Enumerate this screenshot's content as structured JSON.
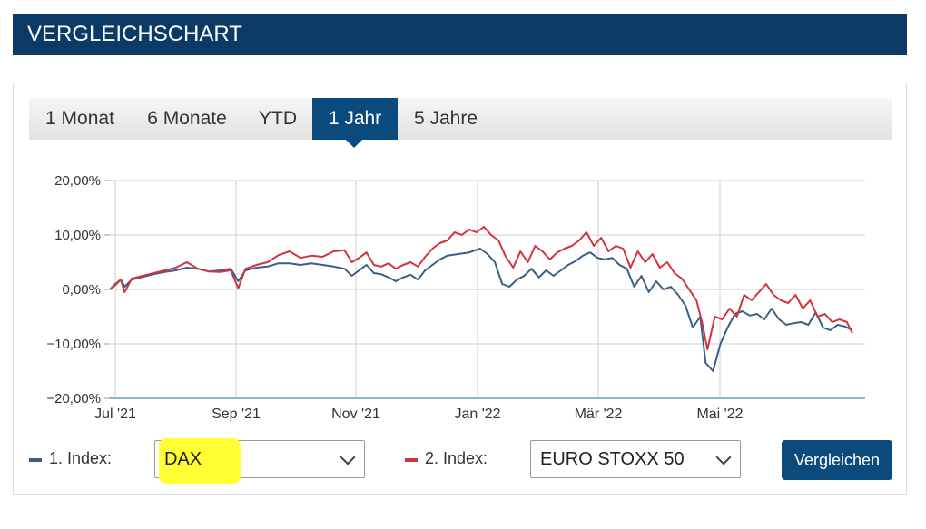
{
  "header": {
    "title": "VERGLEICHSCHART"
  },
  "tabs": [
    {
      "label": "1 Monat"
    },
    {
      "label": "6 Monate"
    },
    {
      "label": "YTD"
    },
    {
      "label": "1 Jahr"
    },
    {
      "label": "5 Jahre"
    }
  ],
  "active_tab": "1 Jahr",
  "colors": {
    "header_bg": "#0b3a66",
    "accent": "#0b4a7d",
    "series1": "#3a5f86",
    "series2": "#d0343d",
    "grid": "#cfcfcf"
  },
  "controls": {
    "index1_label": "1. Index:",
    "index1_value": "DAX",
    "index2_label": "2. Index:",
    "index2_value": "EURO STOXX 50",
    "compare_button": "Vergleichen"
  },
  "chart_data": {
    "type": "line",
    "x_tick_labels": [
      "Jul '21",
      "Sep '21",
      "Nov '21",
      "Jan '22",
      "Mär '22",
      "Mai '22"
    ],
    "y_tick_labels": [
      "20,00%",
      "10,00%",
      "0,00%",
      "−10,00%",
      "−20,00%"
    ],
    "y_ticks": [
      20,
      10,
      0,
      -10,
      -20
    ],
    "ylim": [
      -20,
      20
    ],
    "x_range_days": [
      0,
      365
    ],
    "grid": true,
    "series": [
      {
        "legend_label": "1. Index: DAX",
        "color": "#3a5f86",
        "points": [
          [
            0,
            0
          ],
          [
            3,
            1
          ],
          [
            6,
            1.8
          ],
          [
            8,
            0.5
          ],
          [
            12,
            1.8
          ],
          [
            18,
            2.3
          ],
          [
            24,
            2.8
          ],
          [
            30,
            3.2
          ],
          [
            36,
            3.5
          ],
          [
            42,
            4
          ],
          [
            48,
            3.8
          ],
          [
            54,
            3.3
          ],
          [
            60,
            3.5
          ],
          [
            66,
            3.8
          ],
          [
            70,
            1.5
          ],
          [
            74,
            3.5
          ],
          [
            80,
            4
          ],
          [
            86,
            4.2
          ],
          [
            92,
            4.8
          ],
          [
            98,
            4.8
          ],
          [
            104,
            4.5
          ],
          [
            110,
            4.8
          ],
          [
            116,
            4.5
          ],
          [
            122,
            4.2
          ],
          [
            128,
            3.8
          ],
          [
            132,
            2.5
          ],
          [
            136,
            3.5
          ],
          [
            140,
            4.5
          ],
          [
            144,
            3
          ],
          [
            148,
            2.8
          ],
          [
            152,
            2.2
          ],
          [
            156,
            1.5
          ],
          [
            160,
            2.2
          ],
          [
            164,
            2.7
          ],
          [
            168,
            1.8
          ],
          [
            172,
            3.5
          ],
          [
            176,
            4.5
          ],
          [
            180,
            5.5
          ],
          [
            184,
            6.2
          ],
          [
            190,
            6.5
          ],
          [
            196,
            6.8
          ],
          [
            202,
            7.5
          ],
          [
            206,
            6.5
          ],
          [
            210,
            5
          ],
          [
            214,
            1
          ],
          [
            218,
            0.5
          ],
          [
            222,
            1.8
          ],
          [
            226,
            2.5
          ],
          [
            230,
            3.8
          ],
          [
            234,
            2.2
          ],
          [
            238,
            3.5
          ],
          [
            242,
            2.5
          ],
          [
            246,
            3.5
          ],
          [
            250,
            4.5
          ],
          [
            254,
            5.2
          ],
          [
            258,
            6.2
          ],
          [
            262,
            6.8
          ],
          [
            266,
            5.8
          ],
          [
            270,
            5.5
          ],
          [
            274,
            5.8
          ],
          [
            278,
            4.5
          ],
          [
            282,
            3.8
          ],
          [
            286,
            0.5
          ],
          [
            290,
            2.5
          ],
          [
            294,
            -0.5
          ],
          [
            298,
            1.5
          ],
          [
            302,
            0
          ],
          [
            306,
            0.5
          ],
          [
            310,
            -1
          ],
          [
            314,
            -3
          ],
          [
            318,
            -7
          ],
          [
            322,
            -5
          ],
          [
            325,
            -13.5
          ],
          [
            329,
            -15
          ],
          [
            333,
            -10
          ],
          [
            337,
            -7
          ],
          [
            341,
            -4.5
          ],
          [
            345,
            -4
          ],
          [
            349,
            -4.8
          ],
          [
            353,
            -4.5
          ],
          [
            357,
            -5.5
          ],
          [
            361,
            -3.5
          ],
          [
            365,
            -5.5
          ],
          [
            369,
            -6.5
          ],
          [
            373,
            -6.2
          ],
          [
            377,
            -6
          ],
          [
            381,
            -6.5
          ],
          [
            385,
            -4.2
          ],
          [
            389,
            -7
          ],
          [
            393,
            -7.5
          ],
          [
            397,
            -6.5
          ],
          [
            401,
            -6.8
          ],
          [
            405,
            -7.5
          ]
        ]
      },
      {
        "legend_label": "2. Index: EURO STOXX 50",
        "color": "#d0343d",
        "points": [
          [
            0,
            0
          ],
          [
            3,
            0.8
          ],
          [
            6,
            1.8
          ],
          [
            8,
            -0.5
          ],
          [
            12,
            2
          ],
          [
            18,
            2.5
          ],
          [
            24,
            3
          ],
          [
            30,
            3.5
          ],
          [
            36,
            4
          ],
          [
            42,
            5
          ],
          [
            48,
            3.8
          ],
          [
            54,
            3.3
          ],
          [
            60,
            3.2
          ],
          [
            66,
            3.5
          ],
          [
            70,
            0.2
          ],
          [
            74,
            3.8
          ],
          [
            80,
            4.5
          ],
          [
            86,
            5
          ],
          [
            92,
            6.3
          ],
          [
            98,
            7
          ],
          [
            104,
            5.8
          ],
          [
            110,
            6.2
          ],
          [
            116,
            6
          ],
          [
            122,
            7
          ],
          [
            128,
            7.2
          ],
          [
            132,
            5
          ],
          [
            136,
            5.8
          ],
          [
            140,
            6.8
          ],
          [
            144,
            4.5
          ],
          [
            148,
            4.2
          ],
          [
            152,
            4.8
          ],
          [
            156,
            3.8
          ],
          [
            160,
            4.5
          ],
          [
            164,
            5
          ],
          [
            168,
            4.2
          ],
          [
            172,
            6
          ],
          [
            176,
            7.5
          ],
          [
            180,
            8.5
          ],
          [
            184,
            9
          ],
          [
            188,
            10.5
          ],
          [
            192,
            10
          ],
          [
            196,
            11
          ],
          [
            200,
            10.5
          ],
          [
            204,
            11.5
          ],
          [
            208,
            10
          ],
          [
            212,
            9
          ],
          [
            216,
            6
          ],
          [
            220,
            4
          ],
          [
            224,
            7
          ],
          [
            228,
            5
          ],
          [
            232,
            8
          ],
          [
            236,
            7
          ],
          [
            240,
            5.5
          ],
          [
            244,
            6.8
          ],
          [
            248,
            7.5
          ],
          [
            252,
            8
          ],
          [
            256,
            9
          ],
          [
            260,
            10.5
          ],
          [
            264,
            8
          ],
          [
            268,
            9.5
          ],
          [
            272,
            7
          ],
          [
            276,
            8
          ],
          [
            280,
            7.5
          ],
          [
            284,
            4
          ],
          [
            288,
            7
          ],
          [
            292,
            5
          ],
          [
            296,
            6.5
          ],
          [
            300,
            4
          ],
          [
            304,
            5
          ],
          [
            308,
            3
          ],
          [
            312,
            2
          ],
          [
            316,
            0
          ],
          [
            320,
            -2
          ],
          [
            323,
            -6
          ],
          [
            326,
            -11
          ],
          [
            330,
            -5
          ],
          [
            334,
            -5.5
          ],
          [
            338,
            -3.5
          ],
          [
            342,
            -5
          ],
          [
            346,
            -1
          ],
          [
            350,
            -2
          ],
          [
            354,
            -0.5
          ],
          [
            358,
            1
          ],
          [
            362,
            -1
          ],
          [
            366,
            -2
          ],
          [
            370,
            -2.5
          ],
          [
            374,
            -1
          ],
          [
            378,
            -3.5
          ],
          [
            382,
            -2
          ],
          [
            386,
            -5
          ],
          [
            390,
            -4.5
          ],
          [
            394,
            -6
          ],
          [
            398,
            -5.5
          ],
          [
            402,
            -6
          ],
          [
            405,
            -8
          ]
        ]
      }
    ]
  }
}
